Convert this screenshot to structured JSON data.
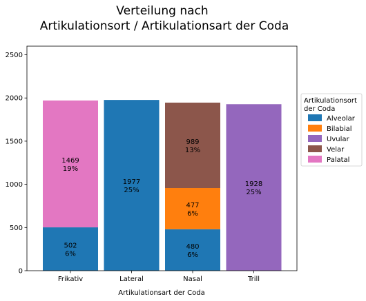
{
  "chart_data": {
    "type": "bar",
    "stacked": true,
    "title_lines": [
      "Verteilung nach",
      "Artikulationsort / Artikulationsart der Coda"
    ],
    "xlabel": "Artikulationsart der Coda",
    "ylabel": "",
    "categories": [
      "Frikativ",
      "Lateral",
      "Nasal",
      "Trill"
    ],
    "ylim": [
      0,
      2600
    ],
    "yticks": [
      0,
      500,
      1000,
      1500,
      2000,
      2500
    ],
    "grid": false,
    "legend": {
      "title_lines": [
        "Artikulationsort",
        "der Coda"
      ],
      "placement": "right"
    },
    "series": [
      {
        "name": "Alveolar",
        "color": "#1f77b4",
        "values": [
          502,
          1977,
          480,
          0
        ],
        "labels": [
          [
            "502",
            "6%"
          ],
          [
            "1977",
            "25%"
          ],
          [
            "480",
            "6%"
          ],
          null
        ]
      },
      {
        "name": "Bilabial",
        "color": "#ff7f0e",
        "values": [
          0,
          0,
          477,
          0
        ],
        "labels": [
          null,
          null,
          [
            "477",
            "6%"
          ],
          null
        ]
      },
      {
        "name": "Uvular",
        "color": "#9467bd",
        "values": [
          0,
          0,
          0,
          1928
        ],
        "labels": [
          null,
          null,
          null,
          [
            "1928",
            "25%"
          ]
        ]
      },
      {
        "name": "Velar",
        "color": "#8c564b",
        "values": [
          0,
          0,
          989,
          0
        ],
        "labels": [
          null,
          null,
          [
            "989",
            "13%"
          ],
          null
        ]
      },
      {
        "name": "Palatal",
        "color": "#e377c2",
        "values": [
          1469,
          0,
          0,
          0
        ],
        "labels": [
          [
            "1469",
            "19%"
          ],
          null,
          null,
          null
        ]
      }
    ]
  }
}
